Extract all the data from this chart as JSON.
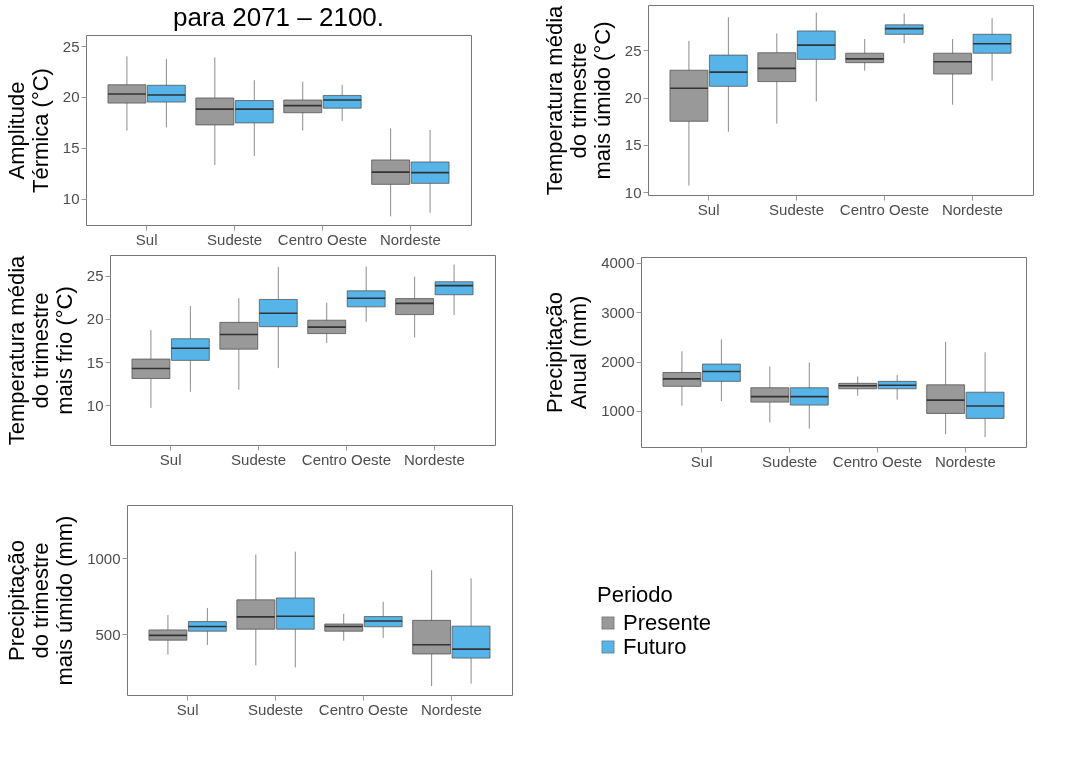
{
  "chart_data": [
    {
      "type": "box",
      "title": "para 2071 – 2100.",
      "ylabel": "Amplitude\nTérmica (°C)",
      "categories": [
        "Sul",
        "Sudeste",
        "Centro Oeste",
        "Nordeste"
      ],
      "ylim": [
        7.4,
        26.1
      ],
      "yticks": [
        10,
        15,
        20,
        25
      ],
      "grid": false,
      "legend": false,
      "series": [
        {
          "color": "#999999",
          "boxes": [
            {
              "low": 16.7,
              "q1": 19.4,
              "median": 20.3,
              "q3": 21.2,
              "high": 24
            },
            {
              "low": 13.3,
              "q1": 17.25,
              "median": 18.8,
              "q3": 19.9,
              "high": 23.9
            },
            {
              "low": 16.7,
              "q1": 18.45,
              "median": 19.15,
              "q3": 19.7,
              "high": 21.5
            },
            {
              "low": 8.25,
              "q1": 11.4,
              "median": 12.6,
              "q3": 13.8,
              "high": 16.9
            }
          ]
        },
        {
          "color": "#56b4e9",
          "boxes": [
            {
              "low": 17,
              "q1": 19.5,
              "median": 20.2,
              "q3": 21.15,
              "high": 23.75
            },
            {
              "low": 14.2,
              "q1": 17.45,
              "median": 18.8,
              "q3": 19.65,
              "high": 21.65
            },
            {
              "low": 17.65,
              "q1": 18.9,
              "median": 19.7,
              "q3": 20.15,
              "high": 21.2
            },
            {
              "low": 8.6,
              "q1": 11.5,
              "median": 12.55,
              "q3": 13.6,
              "high": 16.75
            }
          ]
        }
      ]
    },
    {
      "type": "box",
      "ylabel": "Temperatura média\ndo trimestre\nmais úmido (°C)",
      "categories": [
        "Sul",
        "Sudeste",
        "Centro Oeste",
        "Nordeste"
      ],
      "ylim": [
        9.7,
        29.8
      ],
      "yticks": [
        10,
        15,
        20,
        25
      ],
      "grid": false,
      "legend": false,
      "series": [
        {
          "color": "#999999",
          "boxes": [
            {
              "low": 10.7,
              "q1": 17.5,
              "median": 21,
              "q3": 22.9,
              "high": 26
            },
            {
              "low": 17.25,
              "q1": 21.7,
              "median": 23.1,
              "q3": 24.75,
              "high": 26.8
            },
            {
              "low": 22.85,
              "q1": 23.7,
              "median": 24.1,
              "q3": 24.7,
              "high": 26.2
            },
            {
              "low": 19.25,
              "q1": 22.5,
              "median": 23.8,
              "q3": 24.7,
              "high": 26.2
            }
          ]
        },
        {
          "color": "#56b4e9",
          "boxes": [
            {
              "low": 16.4,
              "q1": 21.2,
              "median": 22.7,
              "q3": 24.5,
              "high": 28.5
            },
            {
              "low": 19.6,
              "q1": 24.05,
              "median": 25.55,
              "q3": 27.05,
              "high": 29
            },
            {
              "low": 25.75,
              "q1": 26.7,
              "median": 27.3,
              "q3": 27.7,
              "high": 28.9
            },
            {
              "low": 21.8,
              "q1": 24.7,
              "median": 25.7,
              "q3": 26.7,
              "high": 28.4
            }
          ]
        }
      ]
    },
    {
      "type": "box",
      "ylabel": "Temperatura média\ndo trimestre\nmais frio (°C)",
      "categories": [
        "Sul",
        "Sudeste",
        "Centro Oeste",
        "Nordeste"
      ],
      "ylim": [
        5.4,
        27.4
      ],
      "yticks": [
        10,
        15,
        20,
        25
      ],
      "grid": false,
      "legend": false,
      "series": [
        {
          "color": "#999999",
          "boxes": [
            {
              "low": 9.7,
              "q1": 13.1,
              "median": 14.25,
              "q3": 15.35,
              "high": 18.7
            },
            {
              "low": 11.8,
              "q1": 16.5,
              "median": 18.2,
              "q3": 19.6,
              "high": 22.4
            },
            {
              "low": 17.2,
              "q1": 18.3,
              "median": 19.05,
              "q3": 19.85,
              "high": 21.85
            },
            {
              "low": 17.85,
              "q1": 20.5,
              "median": 21.8,
              "q3": 22.35,
              "high": 24.9
            }
          ]
        },
        {
          "color": "#56b4e9",
          "boxes": [
            {
              "low": 11.55,
              "q1": 15.2,
              "median": 16.6,
              "q3": 17.7,
              "high": 21.5
            },
            {
              "low": 14.3,
              "q1": 19.1,
              "median": 20.65,
              "q3": 22.25,
              "high": 26
            },
            {
              "low": 19.65,
              "q1": 21.4,
              "median": 22.4,
              "q3": 23.25,
              "high": 26.05
            },
            {
              "low": 20.45,
              "q1": 22.8,
              "median": 23.85,
              "q3": 24.3,
              "high": 26.3
            }
          ]
        }
      ]
    },
    {
      "type": "box",
      "ylabel": "Precipitação\nAnual (mm)",
      "categories": [
        "Sul",
        "Sudeste",
        "Centro Oeste",
        "Nordeste"
      ],
      "ylim": [
        270,
        4120
      ],
      "yticks": [
        1000,
        2000,
        3000,
        4000
      ],
      "grid": false,
      "legend": false,
      "series": [
        {
          "color": "#999999",
          "boxes": [
            {
              "low": 1110,
              "q1": 1500,
              "median": 1650,
              "q3": 1780,
              "high": 2210
            },
            {
              "low": 770,
              "q1": 1180,
              "median": 1290,
              "q3": 1470,
              "high": 1900
            },
            {
              "low": 1310,
              "q1": 1450,
              "median": 1510,
              "q3": 1560,
              "high": 1700
            },
            {
              "low": 530,
              "q1": 950,
              "median": 1220,
              "q3": 1530,
              "high": 2400
            }
          ]
        },
        {
          "color": "#56b4e9",
          "boxes": [
            {
              "low": 1200,
              "q1": 1600,
              "median": 1800,
              "q3": 1950,
              "high": 2450
            },
            {
              "low": 640,
              "q1": 1120,
              "median": 1290,
              "q3": 1470,
              "high": 1980
            },
            {
              "low": 1230,
              "q1": 1450,
              "median": 1520,
              "q3": 1600,
              "high": 1730
            },
            {
              "low": 470,
              "q1": 850,
              "median": 1100,
              "q3": 1380,
              "high": 2190
            }
          ]
        }
      ]
    },
    {
      "type": "box",
      "ylabel": "Precipitação\ndo trimestre\nmais úmido (mm)",
      "categories": [
        "Sul",
        "Sudeste",
        "Centro Oeste",
        "Nordeste"
      ],
      "ylim": [
        100,
        1350
      ],
      "yticks": [
        500,
        1000
      ],
      "grid": false,
      "legend": "right",
      "legend_title": "Periodo",
      "series": [
        {
          "name": "Presente",
          "color": "#999999",
          "boxes": [
            {
              "low": 366,
              "q1": 461,
              "median": 492,
              "q3": 528,
              "high": 626
            },
            {
              "low": 295,
              "q1": 533,
              "median": 614,
              "q3": 726,
              "high": 1024
            },
            {
              "low": 457,
              "q1": 520,
              "median": 551,
              "q3": 567,
              "high": 634
            },
            {
              "low": 159,
              "q1": 370,
              "median": 431,
              "q3": 591,
              "high": 921
            }
          ]
        },
        {
          "name": "Futuro",
          "color": "#56b4e9",
          "boxes": [
            {
              "low": 429,
              "q1": 520,
              "median": 551,
              "q3": 583,
              "high": 673
            },
            {
              "low": 281,
              "q1": 533,
              "median": 618,
              "q3": 738,
              "high": 1043
            },
            {
              "low": 476,
              "q1": 549,
              "median": 587,
              "q3": 616,
              "high": 713
            },
            {
              "low": 175,
              "q1": 343,
              "median": 402,
              "q3": 553,
              "high": 868
            }
          ]
        }
      ]
    }
  ]
}
